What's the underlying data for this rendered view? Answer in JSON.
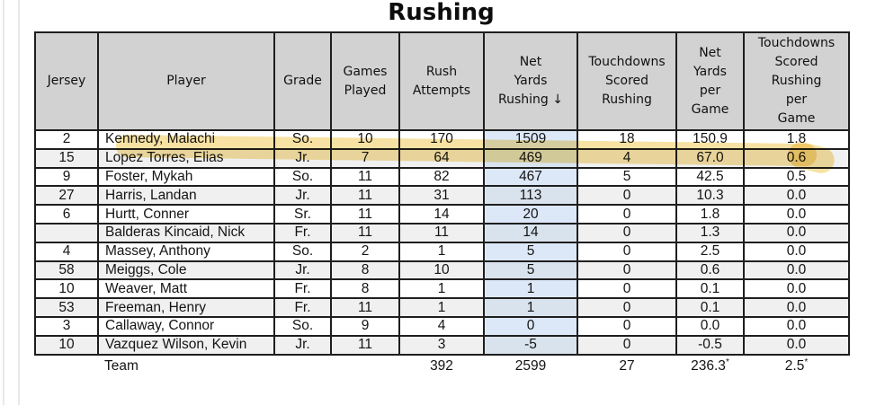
{
  "title": "Rushing",
  "colors": {
    "header_bg": "#d2d2d2",
    "row_alt_bg": "#f0f0f0",
    "net_col_bg": "#dce8f7",
    "border": "#1e1e1e",
    "highlight": "#efc84f"
  },
  "table": {
    "columns": [
      {
        "key": "jersey",
        "label": "Jersey"
      },
      {
        "key": "player",
        "label": "Player"
      },
      {
        "key": "grade",
        "label": "Grade"
      },
      {
        "key": "games",
        "label": "Games\nPlayed"
      },
      {
        "key": "attempts",
        "label": "Rush\nAttempts"
      },
      {
        "key": "net_yards",
        "label": "Net\nYards\nRushing ↓",
        "sorted": "desc"
      },
      {
        "key": "td",
        "label": "Touchdowns\nScored\nRushing"
      },
      {
        "key": "ypg",
        "label": "Net\nYards\nper\nGame"
      },
      {
        "key": "td_pg",
        "label": "Touchdowns\nScored\nRushing\nper\nGame"
      }
    ],
    "rows": [
      {
        "jersey": "2",
        "player": "Kennedy, Malachi",
        "grade": "So.",
        "games": "10",
        "attempts": "170",
        "net_yards": "1509",
        "td": "18",
        "ypg": "150.9",
        "td_pg": "1.8",
        "highlighted": true
      },
      {
        "jersey": "15",
        "player": "Lopez Torres, Elias",
        "grade": "Jr.",
        "games": "7",
        "attempts": "64",
        "net_yards": "469",
        "td": "4",
        "ypg": "67.0",
        "td_pg": "0.6"
      },
      {
        "jersey": "9",
        "player": "Foster, Mykah",
        "grade": "So.",
        "games": "11",
        "attempts": "82",
        "net_yards": "467",
        "td": "5",
        "ypg": "42.5",
        "td_pg": "0.5"
      },
      {
        "jersey": "27",
        "player": "Harris, Landan",
        "grade": "Jr.",
        "games": "11",
        "attempts": "31",
        "net_yards": "113",
        "td": "0",
        "ypg": "10.3",
        "td_pg": "0.0"
      },
      {
        "jersey": "6",
        "player": "Hurtt, Conner",
        "grade": "Sr.",
        "games": "11",
        "attempts": "14",
        "net_yards": "20",
        "td": "0",
        "ypg": "1.8",
        "td_pg": "0.0"
      },
      {
        "jersey": "",
        "player": "Balderas Kincaid, Nick",
        "grade": "Fr.",
        "games": "11",
        "attempts": "11",
        "net_yards": "14",
        "td": "0",
        "ypg": "1.3",
        "td_pg": "0.0"
      },
      {
        "jersey": "4",
        "player": "Massey, Anthony",
        "grade": "So.",
        "games": "2",
        "attempts": "1",
        "net_yards": "5",
        "td": "0",
        "ypg": "2.5",
        "td_pg": "0.0"
      },
      {
        "jersey": "58",
        "player": "Meiggs, Cole",
        "grade": "Jr.",
        "games": "8",
        "attempts": "10",
        "net_yards": "5",
        "td": "0",
        "ypg": "0.6",
        "td_pg": "0.0"
      },
      {
        "jersey": "10",
        "player": "Weaver, Matt",
        "grade": "Fr.",
        "games": "8",
        "attempts": "1",
        "net_yards": "1",
        "td": "0",
        "ypg": "0.1",
        "td_pg": "0.0"
      },
      {
        "jersey": "53",
        "player": "Freeman, Henry",
        "grade": "Fr.",
        "games": "11",
        "attempts": "1",
        "net_yards": "1",
        "td": "0",
        "ypg": "0.1",
        "td_pg": "0.0"
      },
      {
        "jersey": "3",
        "player": "Callaway, Connor",
        "grade": "So.",
        "games": "9",
        "attempts": "4",
        "net_yards": "0",
        "td": "0",
        "ypg": "0.0",
        "td_pg": "0.0"
      },
      {
        "jersey": "10",
        "player": "Vazquez Wilson, Kevin",
        "grade": "Jr.",
        "games": "11",
        "attempts": "3",
        "net_yards": "-5",
        "td": "0",
        "ypg": "-0.5",
        "td_pg": "0.0"
      }
    ],
    "team_row": {
      "label": "Team",
      "attempts": "392",
      "net_yards": "2599",
      "td": "27",
      "ypg": "236.3",
      "ypg_marker": "*",
      "td_pg": "2.5",
      "td_pg_marker": "*"
    }
  },
  "annotations": {
    "highlighted_player": "Kennedy, Malachi",
    "highlight_style": "yellow marker stroke over top row"
  }
}
